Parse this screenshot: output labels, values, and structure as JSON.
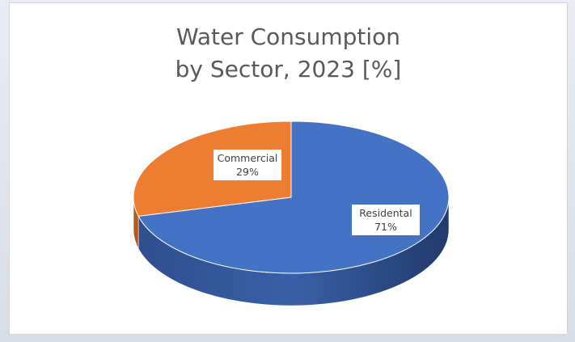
{
  "chart_data": {
    "type": "pie",
    "title": [
      "Water Consumption",
      "by Sector, 2023 [%]"
    ],
    "categories": [
      "Residental",
      "Commercial"
    ],
    "values": [
      71,
      29
    ],
    "value_labels": [
      "71%",
      "29%"
    ],
    "colors": [
      "#4472c4",
      "#ed7d31"
    ],
    "style": "3d",
    "legend": "none"
  }
}
